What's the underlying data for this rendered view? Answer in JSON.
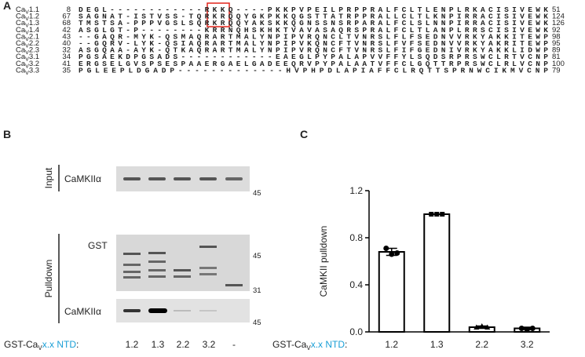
{
  "panel_labels": [
    "A",
    "B",
    "C"
  ],
  "alignment": {
    "rows": [
      {
        "ca": "Ca",
        "v": "V",
        "id": "1.1",
        "start": 8,
        "seq": "DEGL------------RKKQ----PKKPVPEILPRPPRALFCLTLENPLRKACISIVEWK",
        "end": 51
      },
      {
        "ca": "Ca",
        "v": "V",
        "id": "1.2",
        "start": 67,
        "seq": "SAGNAT-ISTVSS-TQRKRQQYGKPKKQGSTTATRPPRALLCLTLKNPIRRACISIVEWK",
        "end": 124
      },
      {
        "ca": "Ca",
        "v": "V",
        "id": "1.3",
        "start": 68,
        "seq": "TMSTSA-PPPVGSLSQRKRQQYAKSKKQGNSSNSRPARALFCLSLNNPIRRACISIVEWK",
        "end": 126
      },
      {
        "ca": "Ca",
        "v": "V",
        "id": "1.4",
        "start": 42,
        "seq": "ASGLGT-P--------KRRNQHSKHKTVAVASAQRSPRALFCLTLANPLRRSCISIVEWK",
        "end": 92
      },
      {
        "ca": "Ca",
        "v": "V",
        "id": "2.1",
        "start": 43,
        "seq": "--GAQR-MYK-QSMAQRARTMALYNPIPVRQNCLTVNRSLFLFSEDNVVRKYAKKITEWP",
        "end": 98
      },
      {
        "ca": "Ca",
        "v": "V",
        "id": "2.2",
        "start": 40,
        "seq": "--GQRV-LYK-QSIAQRARTMALYNPIPVKQNCFTVNRSLFVFSEDNVVRKYAKRITEWP",
        "end": 95
      },
      {
        "ca": "Ca",
        "v": "V",
        "id": "2.3",
        "start": 32,
        "seq": "ASGQAA-AYK-QTKAQRARTMALYNPIPVRQNCFTVNRSLFIFGEDNIVRKYAKKLIDWP",
        "end": 89
      },
      {
        "ca": "Ca",
        "v": "V",
        "id": "3.1",
        "start": 34,
        "seq": "PGSAEKDPGSADS------------EAEGLPYPALAPVVFFYLSQDSRPRSWCLRTVCNP",
        "end": 81
      },
      {
        "ca": "Ca",
        "v": "V",
        "id": "3.2",
        "start": 41,
        "seq": "ERGSELGVSPSESPAAERGAELGADEEQRVPYPALAATVFFCLGQTTRPRSWCLRLVCNP",
        "end": 100
      },
      {
        "ca": "Ca",
        "v": "V",
        "id": "3.3",
        "start": 35,
        "seq": "PGLEEPLDGADP-------------HVPHPDLAPIAFFCLRQTTSPRNWCIKMVCNP",
        "end": 79
      }
    ]
  },
  "gel": {
    "input_label": "Input",
    "pulldown_label": "Pulldown",
    "input_band_label": "CaMKIIα",
    "gst_band_label": "GST",
    "pulldown_band_label": "CaMKIIα",
    "input_markers": [
      45
    ],
    "gst_markers": [
      45,
      31
    ],
    "pulldown_markers": [
      45
    ],
    "lanes": [
      {
        "label": "1.2",
        "color": "#222222"
      },
      {
        "label": "1.3",
        "color": "#222222"
      },
      {
        "label": "2.2",
        "color": "#1a8f3c"
      },
      {
        "label": "3.2",
        "color": "#7b3294"
      },
      {
        "label": "-",
        "color": "#222222"
      }
    ]
  },
  "construct_label": {
    "prefix": "GST-Ca",
    "sub": "V",
    "variable": "x.x NTD",
    "colon": ":",
    "variable_color": "#1a9fd6"
  },
  "chart_data": {
    "type": "bar",
    "ylabel": "CaMKII pulldown",
    "categories": [
      "1.2",
      "1.3",
      "2.2",
      "3.2"
    ],
    "category_colors": [
      "#222222",
      "#222222",
      "#1a8f3c",
      "#7b3294"
    ],
    "values": [
      0.68,
      1.0,
      0.04,
      0.03
    ],
    "errors": [
      0.03,
      0.0,
      0.01,
      0.01
    ],
    "points": [
      [
        0.71,
        0.66,
        0.67
      ],
      [
        1.0,
        1.0,
        1.0
      ],
      [
        0.04,
        0.05,
        0.04
      ],
      [
        0.03,
        0.02,
        0.03
      ]
    ],
    "color": "#ffffff",
    "edge_color": "#000000",
    "ylim": [
      0,
      1.2
    ],
    "yticks": [
      {
        "value": 0,
        "label": "0.0"
      },
      0.4,
      0.8,
      1.2
    ]
  }
}
